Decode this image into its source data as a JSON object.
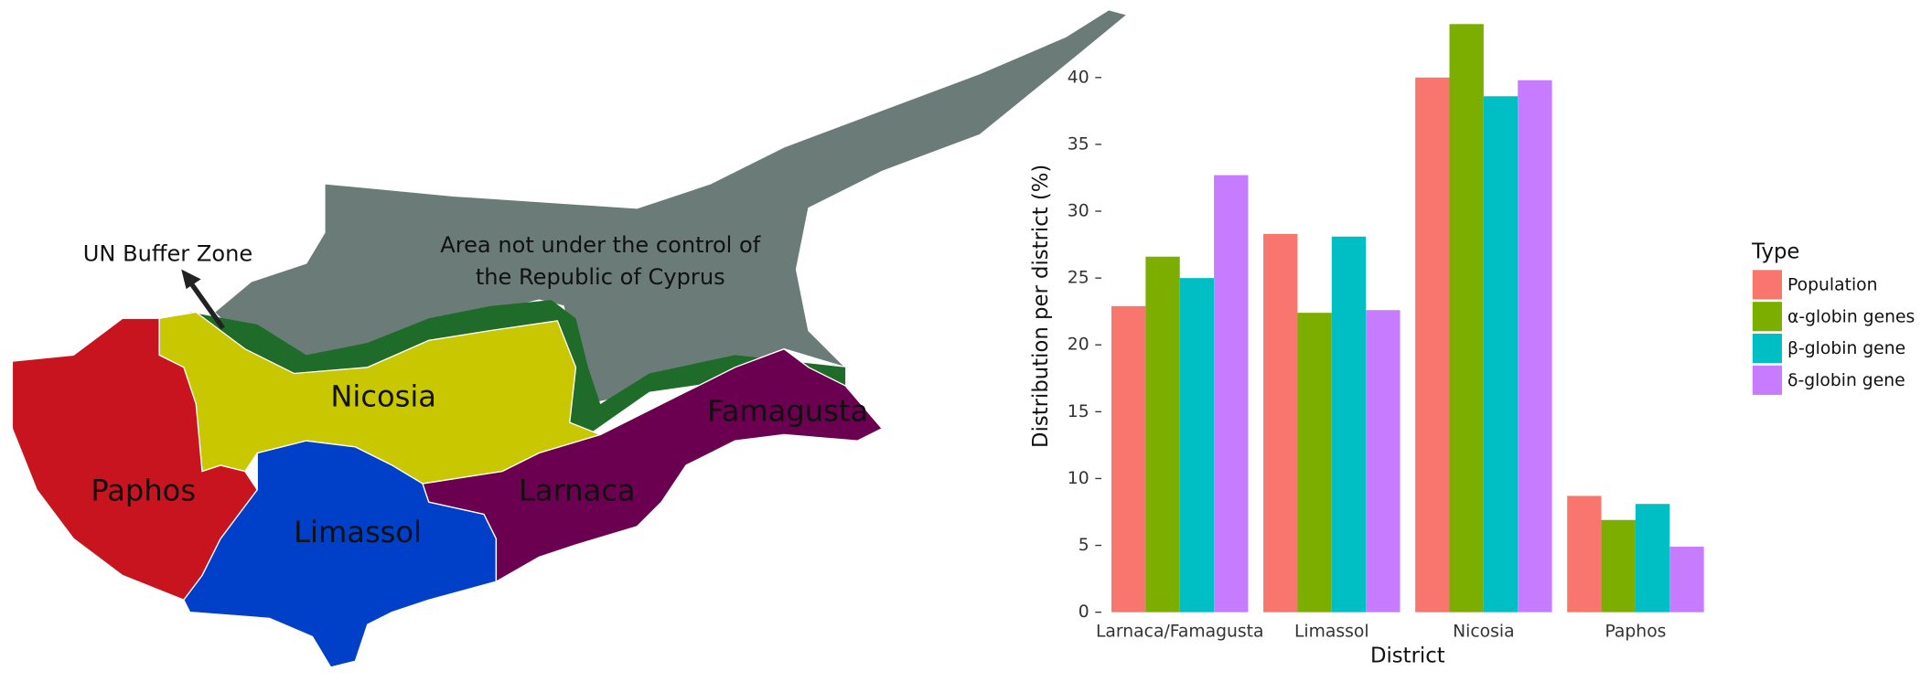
{
  "map": {
    "labels": [
      "UN Buffer Zone",
      "Area not under the control of",
      "the Republic of Cyprus",
      "Nicosia",
      "Paphos",
      "Limassol",
      "Larnaca",
      "Famagusta"
    ]
  },
  "chart_data": {
    "type": "bar",
    "x_label": "District",
    "y_label": "Distribution per district (%)",
    "legend_title": "Type",
    "categories": [
      "Larnaca/Famagusta",
      "Limassol",
      "Nicosia",
      "Paphos"
    ],
    "series": [
      {
        "name": "Population",
        "color": "#F8766D",
        "values": [
          22.9,
          28.3,
          40.0,
          8.7
        ]
      },
      {
        "name": "α-globin genes",
        "color": "#7CAE00",
        "values": [
          26.6,
          22.4,
          44.0,
          6.9
        ]
      },
      {
        "name": "β-globin gene",
        "color": "#00BFC4",
        "values": [
          25.0,
          28.1,
          38.6,
          8.1
        ]
      },
      {
        "name": "δ-globin gene",
        "color": "#C77CFF",
        "values": [
          32.7,
          22.6,
          39.8,
          4.9
        ]
      }
    ],
    "ylim": [
      0,
      45.8
    ],
    "yticks": [
      0,
      5,
      10,
      15,
      20,
      25,
      30,
      35,
      40
    ],
    "grid": false,
    "legend": "right"
  }
}
